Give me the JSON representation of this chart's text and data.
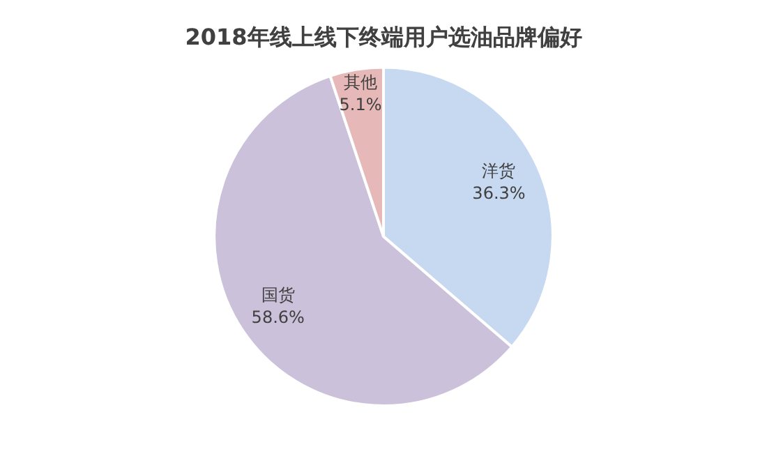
{
  "chart_data": {
    "type": "pie",
    "title": "2018年线上线下终端用户选油品牌偏好",
    "categories": [
      "洋货",
      "国货",
      "其他"
    ],
    "values": [
      36.3,
      58.6,
      5.1
    ],
    "colors": [
      "#c6d9f1",
      "#ccc1da",
      "#e6b9b8"
    ],
    "value_labels": [
      "36.3%",
      "58.6%",
      "5.1%"
    ],
    "legend": false
  }
}
